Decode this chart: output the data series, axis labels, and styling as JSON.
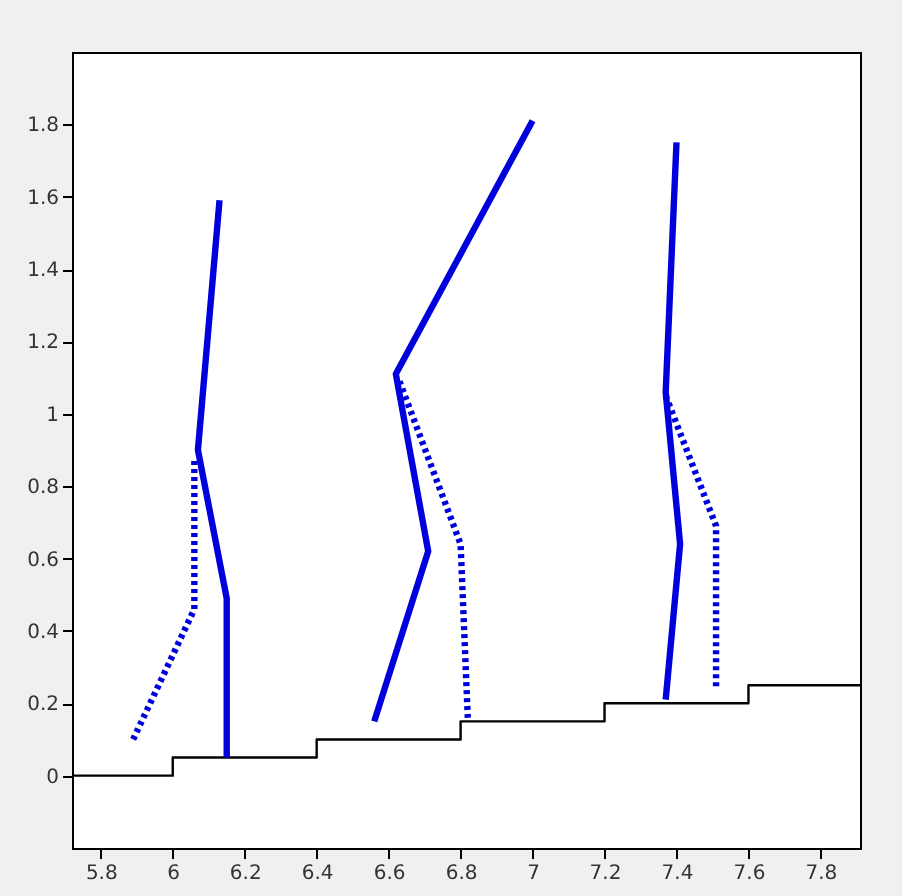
{
  "chart_data": {
    "type": "line",
    "xlim": [
      5.72,
      7.91
    ],
    "xticks": [
      5.8,
      6,
      6.2,
      6.4,
      6.6,
      6.8,
      7,
      7.2,
      7.4,
      7.6,
      7.8
    ],
    "ylim": [
      -0.2,
      2.0
    ],
    "yticks": [
      0,
      0.2,
      0.4,
      0.6,
      0.8,
      1,
      1.2,
      1.4,
      1.6,
      1.8
    ],
    "grid": false,
    "marker": "none",
    "series": [
      {
        "type": "step",
        "color": "#000000",
        "line_style": "solid",
        "x": [
          5.72,
          6,
          6.4,
          6.8,
          7.2,
          7.6,
          7.91
        ],
        "values": [
          0,
          0.05,
          0.1,
          0.15,
          0.2,
          0.25,
          0.25
        ]
      },
      {
        "color": "#0000dd",
        "line_style": "solid",
        "x": [
          6.15,
          6.15,
          6.07,
          6.13
        ],
        "values": [
          0.05,
          0.49,
          0.9,
          1.59
        ]
      },
      {
        "color": "#0000dd",
        "line_style": "dotted",
        "x": [
          5.89,
          6.06,
          6.06
        ],
        "values": [
          0.1,
          0.46,
          0.88
        ]
      },
      {
        "color": "#0000dd",
        "line_style": "solid",
        "x": [
          6.56,
          6.71,
          6.62,
          7.0
        ],
        "values": [
          0.15,
          0.62,
          1.11,
          1.81
        ]
      },
      {
        "color": "#0000dd",
        "line_style": "dotted",
        "x": [
          6.63,
          6.8,
          6.82
        ],
        "values": [
          1.09,
          0.64,
          0.16
        ]
      },
      {
        "color": "#0000dd",
        "line_style": "solid",
        "x": [
          7.37,
          7.41,
          7.37,
          7.4
        ],
        "values": [
          0.21,
          0.64,
          1.06,
          1.75
        ]
      },
      {
        "color": "#0000dd",
        "line_style": "dotted",
        "x": [
          7.37,
          7.51,
          7.51
        ],
        "values": [
          1.05,
          0.69,
          0.24
        ]
      }
    ]
  }
}
